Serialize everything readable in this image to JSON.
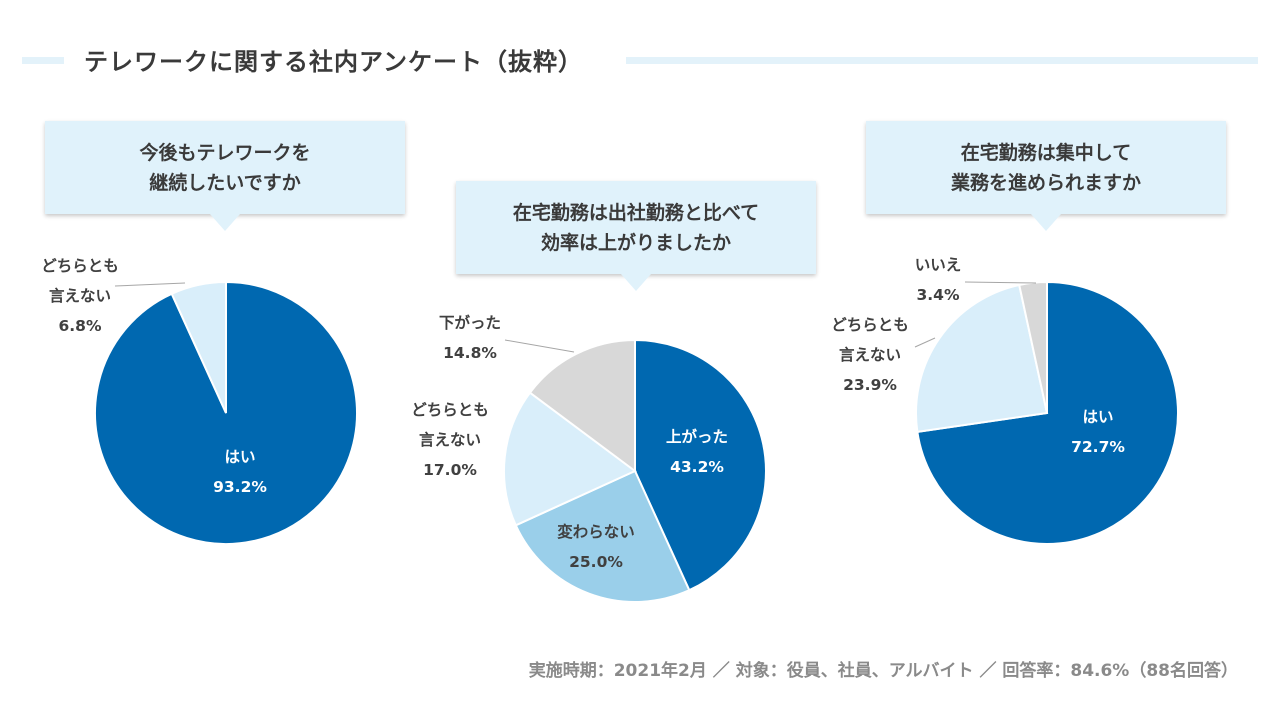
{
  "page": {
    "title": "テレワークに関する社内アンケート（抜粋）",
    "footer_note": "実施時期：2021年2月 ／ 対象：役員、社員、アルバイト ／ 回答率：84.6%（88名回答）"
  },
  "colors": {
    "dark_blue": "#0068b0",
    "mid_blue": "#9acfea",
    "light_blue": "#d9eefa",
    "gray": "#d8d8d8",
    "callout_bg": "#e0f2fb"
  },
  "chart_data": [
    {
      "type": "pie",
      "question_lines": [
        "今後もテレワークを",
        "継続したいですか"
      ],
      "slices": [
        {
          "label_lines": [
            "はい"
          ],
          "value": 93.2,
          "value_label": "93.2%",
          "color": "#0068b0",
          "label_color": "#ffffff"
        },
        {
          "label_lines": [
            "どちらとも",
            "言えない"
          ],
          "value": 6.8,
          "value_label": "6.8%",
          "color": "#d9eefa",
          "label_color": "#404040"
        }
      ]
    },
    {
      "type": "pie",
      "question_lines": [
        "在宅勤務は出社勤務と比べて",
        "効率は上がりましたか"
      ],
      "slices": [
        {
          "label_lines": [
            "上がった"
          ],
          "value": 43.2,
          "value_label": "43.2%",
          "color": "#0068b0",
          "label_color": "#ffffff"
        },
        {
          "label_lines": [
            "変わらない"
          ],
          "value": 25.0,
          "value_label": "25.0%",
          "color": "#9acfea",
          "label_color": "#404040"
        },
        {
          "label_lines": [
            "どちらとも",
            "言えない"
          ],
          "value": 17.0,
          "value_label": "17.0%",
          "color": "#d9eefa",
          "label_color": "#404040"
        },
        {
          "label_lines": [
            "下がった"
          ],
          "value": 14.8,
          "value_label": "14.8%",
          "color": "#d8d8d8",
          "label_color": "#404040"
        }
      ]
    },
    {
      "type": "pie",
      "question_lines": [
        "在宅勤務は集中して",
        "業務を進められますか"
      ],
      "slices": [
        {
          "label_lines": [
            "はい"
          ],
          "value": 72.7,
          "value_label": "72.7%",
          "color": "#0068b0",
          "label_color": "#ffffff"
        },
        {
          "label_lines": [
            "どちらとも",
            "言えない"
          ],
          "value": 23.9,
          "value_label": "23.9%",
          "color": "#d9eefa",
          "label_color": "#404040"
        },
        {
          "label_lines": [
            "いいえ"
          ],
          "value": 3.4,
          "value_label": "3.4%",
          "color": "#d8d8d8",
          "label_color": "#404040"
        }
      ]
    }
  ]
}
